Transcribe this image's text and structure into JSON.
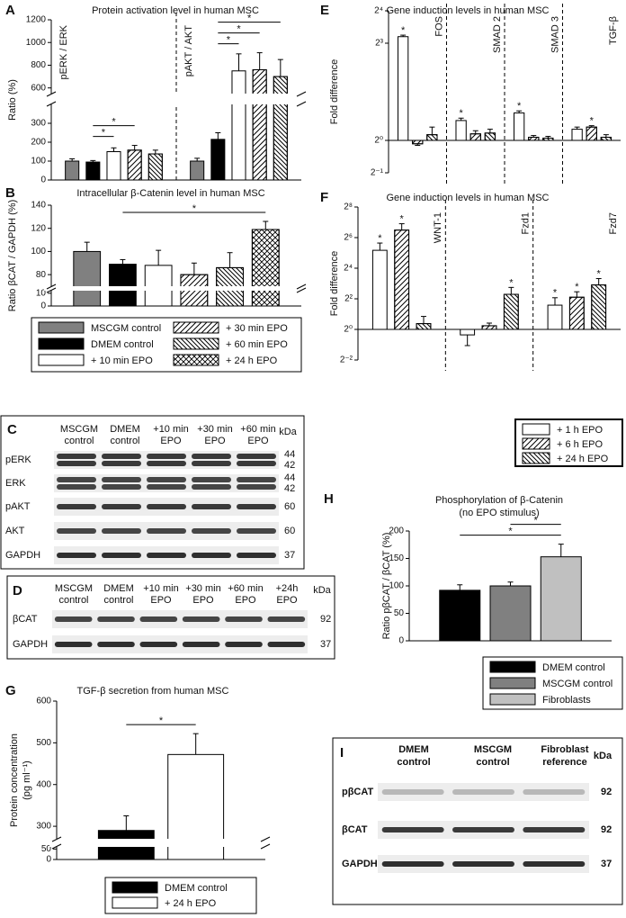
{
  "chart_data": [
    {
      "type": "bar",
      "panel": "A",
      "title": "Protein activation level in human MSC",
      "ylabel": "Ratio (%)",
      "categories": [
        "pERK / ERK",
        "pAKT / AKT"
      ],
      "ylim": [
        0,
        1200
      ],
      "ybreak": [
        400,
        550
      ],
      "yticks": [
        0,
        100,
        200,
        300,
        600,
        800,
        1000,
        1200
      ],
      "series": [
        {
          "color": "#808080",
          "values": [
            100,
            100
          ],
          "errors": [
            12,
            15
          ]
        },
        {
          "color": "#000000",
          "values": [
            95,
            215
          ],
          "errors": [
            8,
            35
          ]
        },
        {
          "color": "#ffffff",
          "values": [
            150,
            750
          ],
          "errors": [
            20,
            150
          ]
        },
        {
          "color": "#ffffff",
          "hatch": "forward",
          "values": [
            158,
            760
          ],
          "errors": [
            25,
            150
          ]
        },
        {
          "color": "#ffffff",
          "hatch": "backward",
          "values": [
            138,
            700
          ],
          "errors": [
            20,
            150
          ]
        }
      ],
      "significance": [
        {
          "category": 0,
          "series": [
            1,
            2
          ],
          "label": "*"
        },
        {
          "category": 0,
          "series": [
            1,
            3
          ],
          "label": "*"
        },
        {
          "category": 1,
          "series": [
            1,
            2
          ],
          "label": "*"
        },
        {
          "category": 1,
          "series": [
            1,
            3
          ],
          "label": "*"
        },
        {
          "category": 1,
          "series": [
            1,
            4
          ],
          "label": "*"
        }
      ]
    },
    {
      "type": "bar",
      "panel": "B",
      "title": "Intracellular β-Catenin level in human MSC",
      "ylabel": "Ratio βCAT / GAPDH (%)",
      "categories": [
        null
      ],
      "ylim": [
        0,
        140
      ],
      "ybreak": [
        12,
        70
      ],
      "yticks": [
        0,
        10,
        80,
        100,
        120,
        140
      ],
      "series": [
        {
          "name": "MSCGM control",
          "color": "#808080",
          "values": [
            100
          ],
          "errors": [
            8
          ]
        },
        {
          "name": "DMEM control",
          "color": "#000000",
          "values": [
            89
          ],
          "errors": [
            4
          ]
        },
        {
          "name": "+ 10 min EPO",
          "color": "#ffffff",
          "values": [
            88
          ],
          "errors": [
            13
          ]
        },
        {
          "name": "+ 30 min EPO",
          "color": "#ffffff",
          "hatch": "forward",
          "values": [
            80
          ],
          "errors": [
            10
          ]
        },
        {
          "name": "+ 60 min EPO",
          "color": "#ffffff",
          "hatch": "backward",
          "values": [
            86
          ],
          "errors": [
            13
          ]
        },
        {
          "name": "+ 24 h EPO",
          "color": "#ffffff",
          "hatch": "cross",
          "values": [
            119
          ],
          "errors": [
            7
          ]
        }
      ],
      "significance": [
        {
          "category": 0,
          "series": [
            1,
            5
          ],
          "label": "*"
        }
      ]
    },
    {
      "type": "bar",
      "panel": "E",
      "title": "Gene induction levels in human MSC",
      "ylabel": "Fold difference",
      "log_scale": true,
      "log_base": 2,
      "categories": [
        "FOS",
        "SMAD 2",
        "SMAD 3",
        "TGF-β"
      ],
      "ylim": [
        0.5,
        16
      ],
      "yticks": [
        {
          "value": 0.5,
          "label": "2⁻¹"
        },
        {
          "value": 1,
          "label": "2⁰"
        },
        {
          "value": 8,
          "label": "2³"
        },
        {
          "value": 16,
          "label": "2⁴"
        }
      ],
      "series": [
        {
          "color": "#ffffff",
          "values": [
            9.2,
            1.53,
            1.8,
            1.27
          ],
          "errors": [
            0.3,
            0.08,
            0.08,
            0.06
          ]
        },
        {
          "color": "#ffffff",
          "hatch": "forward",
          "values": [
            0.93,
            1.15,
            1.07,
            1.33
          ],
          "errors": [
            0.03,
            0.08,
            0.04,
            0.04
          ]
        },
        {
          "color": "#ffffff",
          "hatch": "backward",
          "values": [
            1.13,
            1.17,
            1.05,
            1.07
          ],
          "errors": [
            0.2,
            0.1,
            0.04,
            0.06
          ]
        }
      ],
      "stars": [
        {
          "category": 0,
          "series": 0,
          "label": "*"
        },
        {
          "category": 1,
          "series": 0,
          "label": "*"
        },
        {
          "category": 2,
          "series": 0,
          "label": "*"
        },
        {
          "category": 3,
          "series": 1,
          "label": "*"
        }
      ]
    },
    {
      "type": "bar",
      "panel": "F",
      "title": "Gene induction levels in human MSC",
      "ylabel": "Fold difference",
      "log_scale": true,
      "log_base": 2,
      "categories": [
        "WNT-1",
        "Fzd1",
        "Fzd7"
      ],
      "ylim": [
        0.25,
        256
      ],
      "yticks": [
        {
          "value": 0.25,
          "label": "2⁻²"
        },
        {
          "value": 1,
          "label": "2⁰"
        },
        {
          "value": 4,
          "label": "2²"
        },
        {
          "value": 16,
          "label": "2⁴"
        },
        {
          "value": 64,
          "label": "2⁶"
        },
        {
          "value": 256,
          "label": "2⁸"
        }
      ],
      "series": [
        {
          "name": "+ 1 h EPO",
          "color": "#ffffff",
          "values": [
            36,
            0.78,
            3.0
          ],
          "errors": [
            14,
            0.3,
            1.2
          ]
        },
        {
          "name": "+ 6 h EPO",
          "color": "#ffffff",
          "hatch": "forward",
          "values": [
            90,
            1.18,
            4.3
          ],
          "errors": [
            30,
            0.15,
            1.2
          ]
        },
        {
          "name": "+ 24 h EPO",
          "color": "#ffffff",
          "hatch": "backward",
          "values": [
            1.3,
            4.9,
            7.5
          ],
          "errors": [
            0.5,
            1.8,
            2.5
          ]
        }
      ],
      "stars": [
        {
          "category": 0,
          "series": 0,
          "label": "*"
        },
        {
          "category": 0,
          "series": 1,
          "label": "*"
        },
        {
          "category": 1,
          "series": 2,
          "label": "*"
        },
        {
          "category": 2,
          "series": 0,
          "label": "*"
        },
        {
          "category": 2,
          "series": 1,
          "label": "*"
        },
        {
          "category": 2,
          "series": 2,
          "label": "*"
        }
      ]
    },
    {
      "type": "bar",
      "panel": "G",
      "title": "TGF-β secretion from human MSC",
      "ylabel": [
        "Protein concentration",
        "(pg ml⁻¹)"
      ],
      "categories": [
        null
      ],
      "ylim": [
        0,
        600
      ],
      "ybreak": [
        60,
        270
      ],
      "yticks": [
        0,
        50,
        300,
        400,
        500,
        600
      ],
      "series": [
        {
          "name": "DMEM control",
          "color": "#000000",
          "values": [
            290
          ],
          "errors": [
            35
          ]
        },
        {
          "name": "+ 24 h EPO",
          "color": "#ffffff",
          "values": [
            472
          ],
          "errors": [
            50
          ]
        }
      ],
      "significance": [
        {
          "category": 0,
          "series": [
            0,
            1
          ],
          "label": "*"
        }
      ]
    },
    {
      "type": "bar",
      "panel": "H",
      "title": [
        "Phosphorylation of β-Catenin",
        "(no EPO stimulus)"
      ],
      "ylabel": "Ratio pβCAT / βCAT (%)",
      "categories": [
        null
      ],
      "ylim": [
        0,
        200
      ],
      "yticks": [
        0,
        50,
        100,
        150,
        200
      ],
      "series": [
        {
          "name": "DMEM control",
          "color": "#000000",
          "values": [
            92
          ],
          "errors": [
            10
          ]
        },
        {
          "name": "MSCGM control",
          "color": "#808080",
          "values": [
            100
          ],
          "errors": [
            7
          ]
        },
        {
          "name": "Fibroblasts",
          "color": "#c0c0c0",
          "values": [
            153
          ],
          "errors": [
            23
          ]
        }
      ],
      "significance": [
        {
          "category": 0,
          "series": [
            0,
            2
          ],
          "label": "*"
        },
        {
          "category": 0,
          "series": [
            1,
            2
          ],
          "label": "*"
        }
      ]
    }
  ],
  "blots": [
    {
      "panel": "C",
      "unit": "kDa",
      "columns": [
        [
          "MSCGM",
          "control"
        ],
        [
          "DMEM",
          "control"
        ],
        [
          "+10 min",
          "EPO"
        ],
        [
          "+30 min",
          "EPO"
        ],
        [
          "+60 min",
          "EPO"
        ]
      ],
      "rows": [
        {
          "label": "pERK",
          "kda": [
            44,
            42
          ]
        },
        {
          "label": "ERK",
          "kda": [
            44,
            42
          ]
        },
        {
          "label": "pAKT",
          "kda": [
            60
          ]
        },
        {
          "label": "AKT",
          "kda": [
            60
          ]
        },
        {
          "label": "GAPDH",
          "kda": [
            37
          ]
        }
      ]
    },
    {
      "panel": "D",
      "unit": "kDa",
      "columns": [
        [
          "MSCGM",
          "control"
        ],
        [
          "DMEM",
          "control"
        ],
        [
          "+10 min",
          "EPO"
        ],
        [
          "+30 min",
          "EPO"
        ],
        [
          "+60 min",
          "EPO"
        ],
        [
          "+24h",
          "EPO"
        ]
      ],
      "rows": [
        {
          "label": "βCAT",
          "kda": [
            92
          ]
        },
        {
          "label": "GAPDH",
          "kda": [
            37
          ]
        }
      ]
    },
    {
      "panel": "I",
      "unit": "kDa",
      "bold": true,
      "columns": [
        [
          "DMEM",
          "control"
        ],
        [
          "MSCGM",
          "control"
        ],
        [
          "Fibroblast",
          "reference"
        ]
      ],
      "rows": [
        {
          "label": "pβCAT",
          "kda": [
            92
          ]
        },
        {
          "label": "βCAT",
          "kda": [
            92
          ]
        },
        {
          "label": "GAPDH",
          "kda": [
            37
          ]
        }
      ]
    }
  ]
}
